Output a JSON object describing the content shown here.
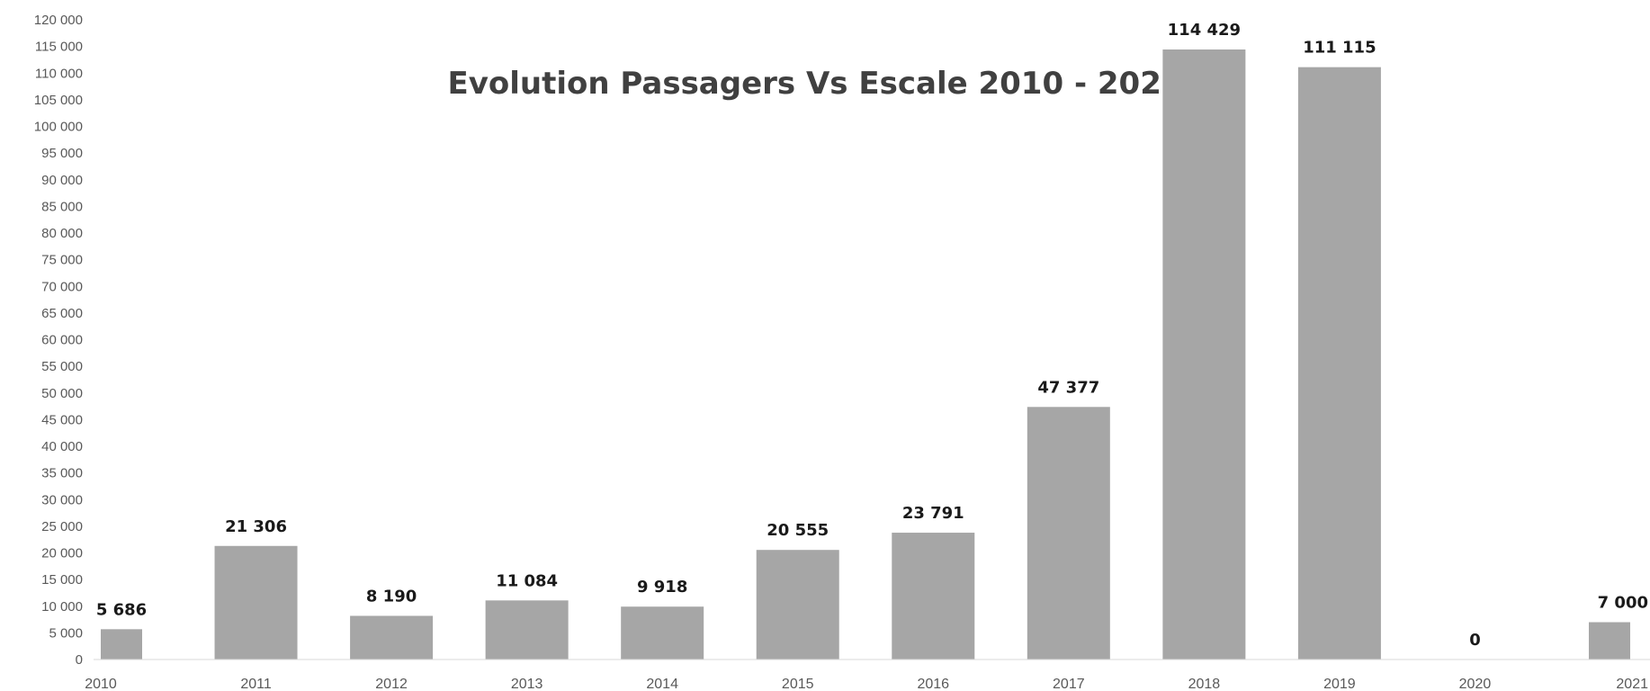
{
  "chart_data": {
    "type": "bar",
    "title": "Evolution Passagers Vs Escale 2010 - 2021",
    "xlabel": "",
    "ylabel": "",
    "categories": [
      "2010",
      "2011",
      "2012",
      "2013",
      "2014",
      "2015",
      "2016",
      "2017",
      "2018",
      "2019",
      "2020",
      "2021"
    ],
    "values": [
      5686,
      21306,
      8190,
      11084,
      9918,
      20555,
      23791,
      47377,
      114429,
      111115,
      0,
      7000
    ],
    "data_labels": [
      "5 686",
      "21 306",
      "8 190",
      "11 084",
      "9 918",
      "20 555",
      "23 791",
      "47 377",
      "114 429",
      "111 115",
      "0",
      "7 000"
    ],
    "ylim": [
      0,
      120000
    ],
    "yticks": [
      0,
      5000,
      10000,
      15000,
      20000,
      25000,
      30000,
      35000,
      40000,
      45000,
      50000,
      55000,
      60000,
      65000,
      70000,
      75000,
      80000,
      85000,
      90000,
      95000,
      100000,
      105000,
      110000,
      115000,
      120000
    ],
    "ytick_labels": [
      "0",
      "5 000",
      "10 000",
      "15 000",
      "20 000",
      "25 000",
      "30 000",
      "35 000",
      "40 000",
      "45 000",
      "50 000",
      "55 000",
      "60 000",
      "65 000",
      "70 000",
      "75 000",
      "80 000",
      "85 000",
      "90 000",
      "95 000",
      "100 000",
      "105 000",
      "110 000",
      "115 000",
      "120 000"
    ],
    "grid": false,
    "legend": "none",
    "bar_color": "#a6a6a6"
  }
}
